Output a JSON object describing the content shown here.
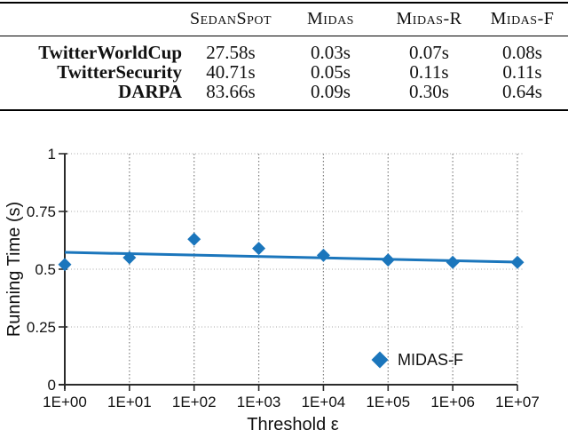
{
  "table": {
    "headers": [
      "SedanSpot",
      "Midas",
      "Midas-R",
      "Midas-F"
    ],
    "rows": [
      {
        "label": "TwitterWorldCup",
        "values": [
          "27.58s",
          "0.03s",
          "0.07s",
          "0.08s"
        ]
      },
      {
        "label": "TwitterSecurity",
        "values": [
          "40.71s",
          "0.05s",
          "0.11s",
          "0.11s"
        ]
      },
      {
        "label": "DARPA",
        "values": [
          "83.66s",
          "0.09s",
          "0.30s",
          "0.64s"
        ]
      }
    ]
  },
  "chart_data": {
    "type": "scatter",
    "categories": [
      "1E+00",
      "1E+01",
      "1E+02",
      "1E+03",
      "1E+04",
      "1E+05",
      "1E+06",
      "1E+07"
    ],
    "series": [
      {
        "name": "MIDAS-F",
        "values": [
          0.52,
          0.55,
          0.63,
          0.59,
          0.56,
          0.54,
          0.53,
          0.53
        ]
      }
    ],
    "trendline": {
      "start": 0.573,
      "end": 0.531
    },
    "title": "",
    "xlabel": "Threshold ε",
    "ylabel": "Running Time (s)",
    "ylim": [
      0,
      1
    ],
    "yticks": [
      0,
      0.25,
      0.5,
      0.75,
      1
    ],
    "ytick_labels": [
      "0",
      "0.25",
      "0.5",
      "0.75",
      "1"
    ],
    "legend": {
      "label": "MIDAS-F",
      "position": "inside-bottom-right"
    },
    "grid": "dotted",
    "marker": "diamond",
    "colors": {
      "series": "#1b76bc",
      "axis": "#2b2b2b",
      "grid_vertical": "#7f7f7f",
      "grid_horizontal": "#a8a8a8",
      "text": "#111111"
    }
  }
}
